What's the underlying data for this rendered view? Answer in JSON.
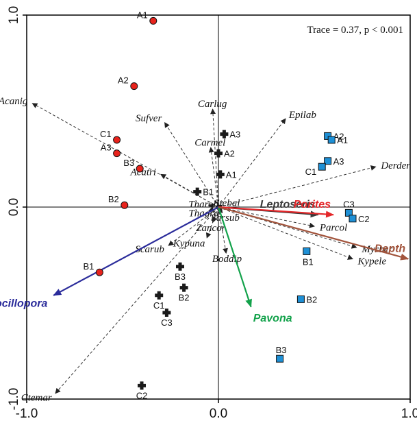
{
  "chart_data": {
    "type": "scatter",
    "annotation": "Trace = 0.37, p < 0.001",
    "xlim": [
      -1.0,
      1.0
    ],
    "ylim": [
      -1.0,
      1.0
    ],
    "x_ticks": [
      {
        "value": -1.0,
        "label": "-1.0"
      },
      {
        "value": 0.0,
        "label": "0.0"
      },
      {
        "value": 1.0,
        "label": "1.0"
      }
    ],
    "y_ticks": [
      {
        "value": -1.0,
        "label": "-1.0"
      },
      {
        "value": 0.0,
        "label": "0.0"
      },
      {
        "value": 1.0,
        "label": "1.0"
      }
    ],
    "grid": false,
    "legend": "none",
    "sample_groups": [
      {
        "marker": "circle",
        "color": "#e8231c",
        "points": [
          {
            "label": "A1",
            "x": -0.34,
            "y": 0.97
          },
          {
            "label": "A2",
            "x": -0.44,
            "y": 0.63
          },
          {
            "label": "C1",
            "x": -0.53,
            "y": 0.35
          },
          {
            "label": "A3",
            "x": -0.53,
            "y": 0.28
          },
          {
            "label": "B3",
            "x": -0.41,
            "y": 0.2
          },
          {
            "label": "B2",
            "x": -0.49,
            "y": 0.01
          },
          {
            "label": "B1",
            "x": -0.62,
            "y": -0.34
          }
        ]
      },
      {
        "marker": "cross",
        "color": "#1a1a1a",
        "points": [
          {
            "label": "A3",
            "x": 0.03,
            "y": 0.38
          },
          {
            "label": "A2",
            "x": 0.0,
            "y": 0.28
          },
          {
            "label": "A1",
            "x": 0.01,
            "y": 0.17
          },
          {
            "label": "B1",
            "x": -0.11,
            "y": 0.08
          },
          {
            "label": "B3",
            "x": -0.2,
            "y": -0.31
          },
          {
            "label": "B2",
            "x": -0.18,
            "y": -0.42
          },
          {
            "label": "C1",
            "x": -0.31,
            "y": -0.46
          },
          {
            "label": "C3",
            "x": -0.27,
            "y": -0.55
          },
          {
            "label": "C2",
            "x": -0.4,
            "y": -0.93
          }
        ]
      },
      {
        "marker": "square",
        "color": "#1e90d6",
        "points": [
          {
            "label": "A2",
            "x": 0.57,
            "y": 0.37
          },
          {
            "label": "A1",
            "x": 0.59,
            "y": 0.35
          },
          {
            "label": "A3",
            "x": 0.57,
            "y": 0.24
          },
          {
            "label": "C1",
            "x": 0.54,
            "y": 0.21
          },
          {
            "label": "C3",
            "x": 0.68,
            "y": -0.03
          },
          {
            "label": "C2",
            "x": 0.7,
            "y": -0.06
          },
          {
            "label": "B1",
            "x": 0.46,
            "y": -0.23
          },
          {
            "label": "B2",
            "x": 0.43,
            "y": -0.48
          },
          {
            "label": "B3",
            "x": 0.32,
            "y": -0.79
          }
        ]
      }
    ],
    "species_vectors": [
      {
        "name": "Acanig",
        "x": -0.97,
        "y": 0.54
      },
      {
        "name": "Sufver",
        "x": -0.28,
        "y": 0.44
      },
      {
        "name": "Carlug",
        "x": -0.03,
        "y": 0.51
      },
      {
        "name": "Carmel",
        "x": -0.04,
        "y": 0.31
      },
      {
        "name": "Epilab",
        "x": 0.35,
        "y": 0.46
      },
      {
        "name": "Derder",
        "x": 0.82,
        "y": 0.21
      },
      {
        "name": "Acatri",
        "x": -0.3,
        "y": 0.17
      },
      {
        "name": "Tharob",
        "x": -0.05,
        "y": 0.01
      },
      {
        "name": "Stebal",
        "x": 0.02,
        "y": 0.01
      },
      {
        "name": "Thagra",
        "x": -0.05,
        "y": -0.02
      },
      {
        "name": "Sarsub",
        "x": 0.02,
        "y": -0.03
      },
      {
        "name": "Zancor",
        "x": -0.03,
        "y": -0.08
      },
      {
        "name": "Kypuna",
        "x": -0.06,
        "y": -0.16
      },
      {
        "name": "Scarub",
        "x": -0.26,
        "y": -0.2
      },
      {
        "name": "Boddip",
        "x": 0.04,
        "y": -0.24
      },
      {
        "name": "Parcol",
        "x": 0.5,
        "y": -0.1
      },
      {
        "name": "Myrber",
        "x": 0.72,
        "y": -0.21
      },
      {
        "name": "Kypele",
        "x": 0.7,
        "y": -0.27
      },
      {
        "name": "Ctemar",
        "x": -0.85,
        "y": -0.97
      }
    ],
    "environmental_vectors": [
      {
        "name": "Pocillopora",
        "x": -0.86,
        "y": -0.46,
        "color": "#2b2c9b"
      },
      {
        "name": "Pavona",
        "x": 0.17,
        "y": -0.52,
        "color": "#13a24b"
      },
      {
        "name": "Leptoseris",
        "x": 0.52,
        "y": -0.04,
        "color": "#3a3a3a"
      },
      {
        "name": "Porites",
        "x": 0.6,
        "y": -0.04,
        "color": "#e4272a"
      },
      {
        "name": "Depth",
        "x": 0.99,
        "y": -0.27,
        "color": "#a2543c"
      }
    ]
  }
}
